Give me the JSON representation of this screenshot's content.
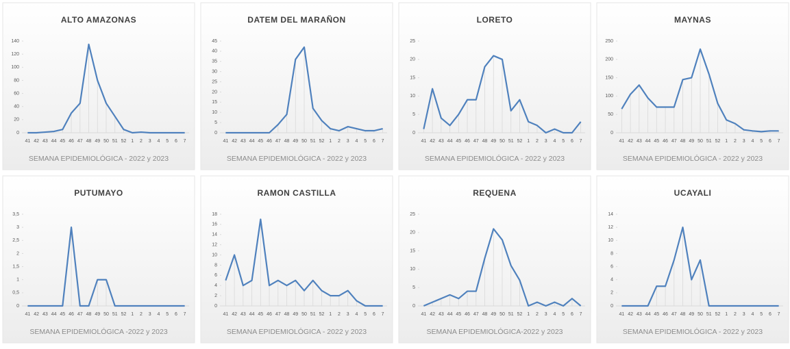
{
  "chart_data": [
    {
      "type": "line",
      "title": "ALTO AMAZONAS",
      "x_label": "SEMANA EPIDEMIOLÓGICA - 2022 y 2023",
      "color": "#4f81bd",
      "categories": [
        "41",
        "42",
        "43",
        "44",
        "45",
        "46",
        "47",
        "48",
        "49",
        "50",
        "51",
        "52",
        "1",
        "2",
        "3",
        "4",
        "5",
        "6",
        "7"
      ],
      "values": [
        0,
        0,
        1,
        2,
        5,
        30,
        45,
        135,
        80,
        45,
        25,
        5,
        0,
        1,
        0,
        0,
        0,
        0,
        0
      ],
      "ylim": [
        0,
        140
      ],
      "yticks": [
        0,
        20,
        40,
        60,
        80,
        100,
        120,
        140
      ]
    },
    {
      "type": "line",
      "title": "DATEM  DEL MARAÑON",
      "x_label": "SEMANA EPIDEMIOLÓGICA - 2022 y 2023",
      "color": "#4f81bd",
      "categories": [
        "41",
        "42",
        "43",
        "44",
        "45",
        "46",
        "47",
        "48",
        "49",
        "50",
        "51",
        "52",
        "1",
        "2",
        "3",
        "4",
        "5",
        "6",
        "7"
      ],
      "values": [
        0,
        0,
        0,
        0,
        0,
        0,
        4,
        9,
        36,
        42,
        12,
        6,
        2,
        1,
        3,
        2,
        1,
        1,
        2
      ],
      "ylim": [
        0,
        45
      ],
      "yticks": [
        0,
        5,
        10,
        15,
        20,
        25,
        30,
        35,
        40,
        45
      ]
    },
    {
      "type": "line",
      "title": "LORETO",
      "x_label": "SEMANA EPIDEMIOLÓGICA - 2022 y 2023",
      "color": "#4f81bd",
      "categories": [
        "41",
        "42",
        "43",
        "44",
        "45",
        "46",
        "47",
        "48",
        "49",
        "50",
        "51",
        "52",
        "1",
        "2",
        "3",
        "4",
        "5",
        "6",
        "7"
      ],
      "values": [
        1,
        12,
        4,
        2,
        5,
        9,
        9,
        18,
        21,
        20,
        6,
        9,
        3,
        2,
        0,
        1,
        0,
        0,
        3
      ],
      "ylim": [
        0,
        25
      ],
      "yticks": [
        0,
        5,
        10,
        15,
        20,
        25
      ]
    },
    {
      "type": "line",
      "title": "MAYNAS",
      "x_label": "SEMANA EPIDEMIOLÓGICA - 2022 y 2023",
      "color": "#4f81bd",
      "categories": [
        "41",
        "42",
        "43",
        "44",
        "45",
        "46",
        "47",
        "48",
        "49",
        "50",
        "51",
        "52",
        "1",
        "2",
        "3",
        "4",
        "5",
        "6",
        "7"
      ],
      "values": [
        65,
        105,
        130,
        95,
        70,
        70,
        70,
        145,
        150,
        228,
        160,
        80,
        35,
        25,
        8,
        5,
        3,
        5,
        5
      ],
      "ylim": [
        0,
        250
      ],
      "yticks": [
        0,
        50,
        100,
        150,
        200,
        250
      ]
    },
    {
      "type": "line",
      "title": "PUTUMAYO",
      "x_label": "SEMANA EPIDEMIOLÓGICA -2022 y 2023",
      "color": "#4f81bd",
      "categories": [
        "41",
        "42",
        "43",
        "44",
        "45",
        "46",
        "47",
        "48",
        "49",
        "50",
        "51",
        "52",
        "1",
        "2",
        "3",
        "4",
        "5",
        "6",
        "7"
      ],
      "values": [
        0,
        0,
        0,
        0,
        0,
        3,
        0,
        0,
        1,
        1,
        0,
        0,
        0,
        0,
        0,
        0,
        0,
        0,
        0
      ],
      "ylim": [
        0,
        3.5
      ],
      "yticks": [
        0,
        {
          "value": 0.5,
          "label": "0,5"
        },
        1,
        {
          "value": 1.5,
          "label": "1,5"
        },
        2,
        {
          "value": 2.5,
          "label": "2,5"
        },
        3,
        {
          "value": 3.5,
          "label": "3,5"
        }
      ]
    },
    {
      "type": "line",
      "title": "RAMON CASTILLA",
      "x_label": "SEMANA EPIDEMIOLÓGICA - 2022 y 2023",
      "color": "#4f81bd",
      "categories": [
        "41",
        "42",
        "43",
        "44",
        "45",
        "46",
        "47",
        "48",
        "49",
        "50",
        "51",
        "52",
        "1",
        "2",
        "3",
        "4",
        "5",
        "6",
        "7"
      ],
      "values": [
        5,
        10,
        4,
        5,
        17,
        4,
        5,
        4,
        5,
        3,
        5,
        3,
        2,
        2,
        3,
        1,
        0,
        0,
        0
      ],
      "ylim": [
        0,
        18
      ],
      "yticks": [
        0,
        2,
        4,
        6,
        8,
        10,
        12,
        14,
        16,
        18
      ]
    },
    {
      "type": "line",
      "title": "REQUENA",
      "x_label": "SEMANA EPIDEMIOLÓGICA-2022 y 2023",
      "color": "#4f81bd",
      "categories": [
        "41",
        "42",
        "43",
        "44",
        "45",
        "46",
        "47",
        "48",
        "49",
        "50",
        "51",
        "52",
        "1",
        "2",
        "3",
        "4",
        "5",
        "6",
        "7"
      ],
      "values": [
        0,
        1,
        2,
        3,
        2,
        4,
        4,
        13,
        21,
        18,
        11,
        7,
        0,
        1,
        0,
        1,
        0,
        2,
        0
      ],
      "ylim": [
        0,
        25
      ],
      "yticks": [
        0,
        5,
        10,
        15,
        20,
        25
      ]
    },
    {
      "type": "line",
      "title": "UCAYALI",
      "x_label": "SEMANA EPIDEMIOLÓGICA - 2022 y 2023",
      "color": "#4f81bd",
      "categories": [
        "41",
        "42",
        "43",
        "44",
        "45",
        "46",
        "47",
        "48",
        "49",
        "50",
        "51",
        "52",
        "1",
        "2",
        "3",
        "4",
        "5",
        "6",
        "7"
      ],
      "values": [
        0,
        0,
        0,
        0,
        3,
        3,
        7,
        12,
        4,
        7,
        0,
        0,
        0,
        0,
        0,
        0,
        0,
        0,
        0
      ],
      "ylim": [
        0,
        14
      ],
      "yticks": [
        0,
        2,
        4,
        6,
        8,
        10,
        12,
        14
      ]
    }
  ]
}
